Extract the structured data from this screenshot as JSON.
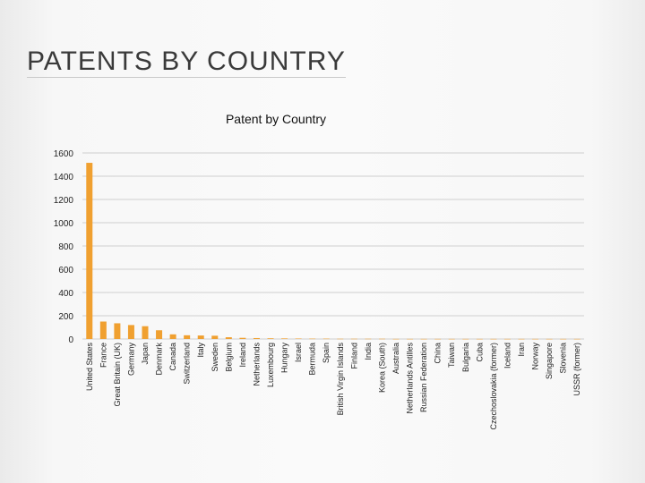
{
  "slide": {
    "title": "PATENTS BY COUNTRY"
  },
  "colors": {
    "bar": "#f0a030",
    "gridline": "#cfcfcf",
    "text": "#222222"
  },
  "chart_data": {
    "type": "bar",
    "title": "Patent by Country",
    "xlabel": "",
    "ylabel": "",
    "ylim": [
      0,
      1600
    ],
    "yticks": [
      0,
      200,
      400,
      600,
      800,
      1000,
      1200,
      1400,
      1600
    ],
    "grid": true,
    "legend": "none",
    "categories": [
      "United States",
      "France",
      "Great Britain (UK)",
      "Germany",
      "Japan",
      "Denmark",
      "Canada",
      "Switzerland",
      "Italy",
      "Sweden",
      "Belgium",
      "Ireland",
      "Netherlands",
      "Luxembourg",
      "Hungary",
      "Israel",
      "Bermuda",
      "Spain",
      "British Virgin Islands",
      "Finland",
      "India",
      "Korea (South)",
      "Australia",
      "Netherlands Antilles",
      "Russian Federation",
      "China",
      "Taiwan",
      "Bulgaria",
      "Cuba",
      "Czechoslovakia (former)",
      "Iceland",
      "Iran",
      "Norway",
      "Singapore",
      "Slovenia",
      "USSR (former)"
    ],
    "values": [
      1515,
      150,
      135,
      120,
      110,
      75,
      40,
      32,
      30,
      28,
      15,
      10,
      8,
      6,
      5,
      4,
      3,
      3,
      2,
      2,
      2,
      2,
      1,
      1,
      1,
      1,
      1,
      1,
      1,
      1,
      1,
      1,
      1,
      1,
      1,
      1
    ]
  }
}
